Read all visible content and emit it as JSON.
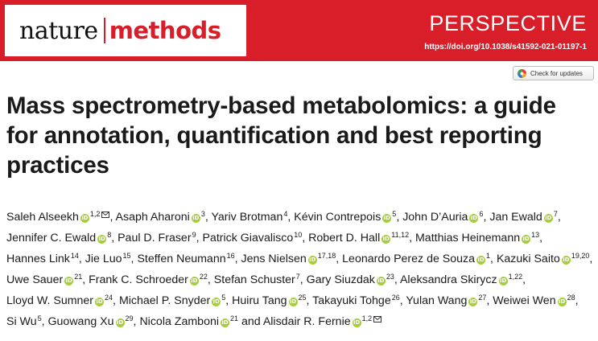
{
  "header": {
    "journal_part1": "nature",
    "journal_part2": "methods",
    "article_type": "PERSPECTIVE",
    "doi": "https://doi.org/10.1038/s41592-021-01197-1",
    "brand_color": "#d81e29"
  },
  "check_updates": {
    "label": "Check for updates",
    "icon": "crossmark-icon"
  },
  "title": "Mass spectrometry-based metabolomics: a guide for annotation, quantification and best reporting practices",
  "orcid_icon_label": "iD",
  "authors": [
    {
      "name": "Saleh Alseekh",
      "orcid": true,
      "aff": "1,2",
      "corresponding": true
    },
    {
      "name": "Asaph Aharoni",
      "orcid": true,
      "aff": "3"
    },
    {
      "name": "Yariv Brotman",
      "orcid": false,
      "aff": "4"
    },
    {
      "name": "Kévin Contrepois",
      "orcid": true,
      "aff": "5"
    },
    {
      "name": "John D’Auria",
      "orcid": true,
      "aff": "6"
    },
    {
      "name": "Jan Ewald",
      "orcid": true,
      "aff": "7"
    },
    {
      "name": "Jennifer C. Ewald",
      "orcid": true,
      "aff": "8"
    },
    {
      "name": "Paul D. Fraser",
      "orcid": false,
      "aff": "9"
    },
    {
      "name": "Patrick Giavalisco",
      "orcid": false,
      "aff": "10"
    },
    {
      "name": "Robert D. Hall",
      "orcid": true,
      "aff": "11,12"
    },
    {
      "name": "Matthias Heinemann",
      "orcid": true,
      "aff": "13"
    },
    {
      "name": "Hannes Link",
      "orcid": false,
      "aff": "14"
    },
    {
      "name": "Jie Luo",
      "orcid": false,
      "aff": "15"
    },
    {
      "name": "Steffen Neumann",
      "orcid": false,
      "aff": "16"
    },
    {
      "name": "Jens Nielsen",
      "orcid": true,
      "aff": "17,18"
    },
    {
      "name": "Leonardo Perez de Souza",
      "orcid": true,
      "aff": "1"
    },
    {
      "name": "Kazuki Saito",
      "orcid": true,
      "aff": "19,20"
    },
    {
      "name": "Uwe Sauer",
      "orcid": true,
      "aff": "21"
    },
    {
      "name": "Frank C. Schroeder",
      "orcid": true,
      "aff": "22"
    },
    {
      "name": "Stefan Schuster",
      "orcid": false,
      "aff": "7"
    },
    {
      "name": "Gary Siuzdak",
      "orcid": true,
      "aff": "23"
    },
    {
      "name": "Aleksandra Skirycz",
      "orcid": true,
      "aff": "1,22"
    },
    {
      "name": "Lloyd W. Sumner",
      "orcid": true,
      "aff": "24"
    },
    {
      "name": "Michael P. Snyder",
      "orcid": true,
      "aff": "5"
    },
    {
      "name": "Huiru Tang",
      "orcid": true,
      "aff": "25"
    },
    {
      "name": "Takayuki Tohge",
      "orcid": false,
      "aff": "26"
    },
    {
      "name": "Yulan Wang",
      "orcid": true,
      "aff": "27"
    },
    {
      "name": "Weiwei Wen",
      "orcid": true,
      "aff": "28"
    },
    {
      "name": "Si Wu",
      "orcid": false,
      "aff": "5"
    },
    {
      "name": "Guowang Xu",
      "orcid": true,
      "aff": "29"
    },
    {
      "name": "Nicola Zamboni",
      "orcid": true,
      "aff": "21"
    },
    {
      "name": "Alisdair R. Fernie",
      "orcid": true,
      "aff": "1,2",
      "corresponding": true
    }
  ],
  "last_author_conjunction": "and"
}
